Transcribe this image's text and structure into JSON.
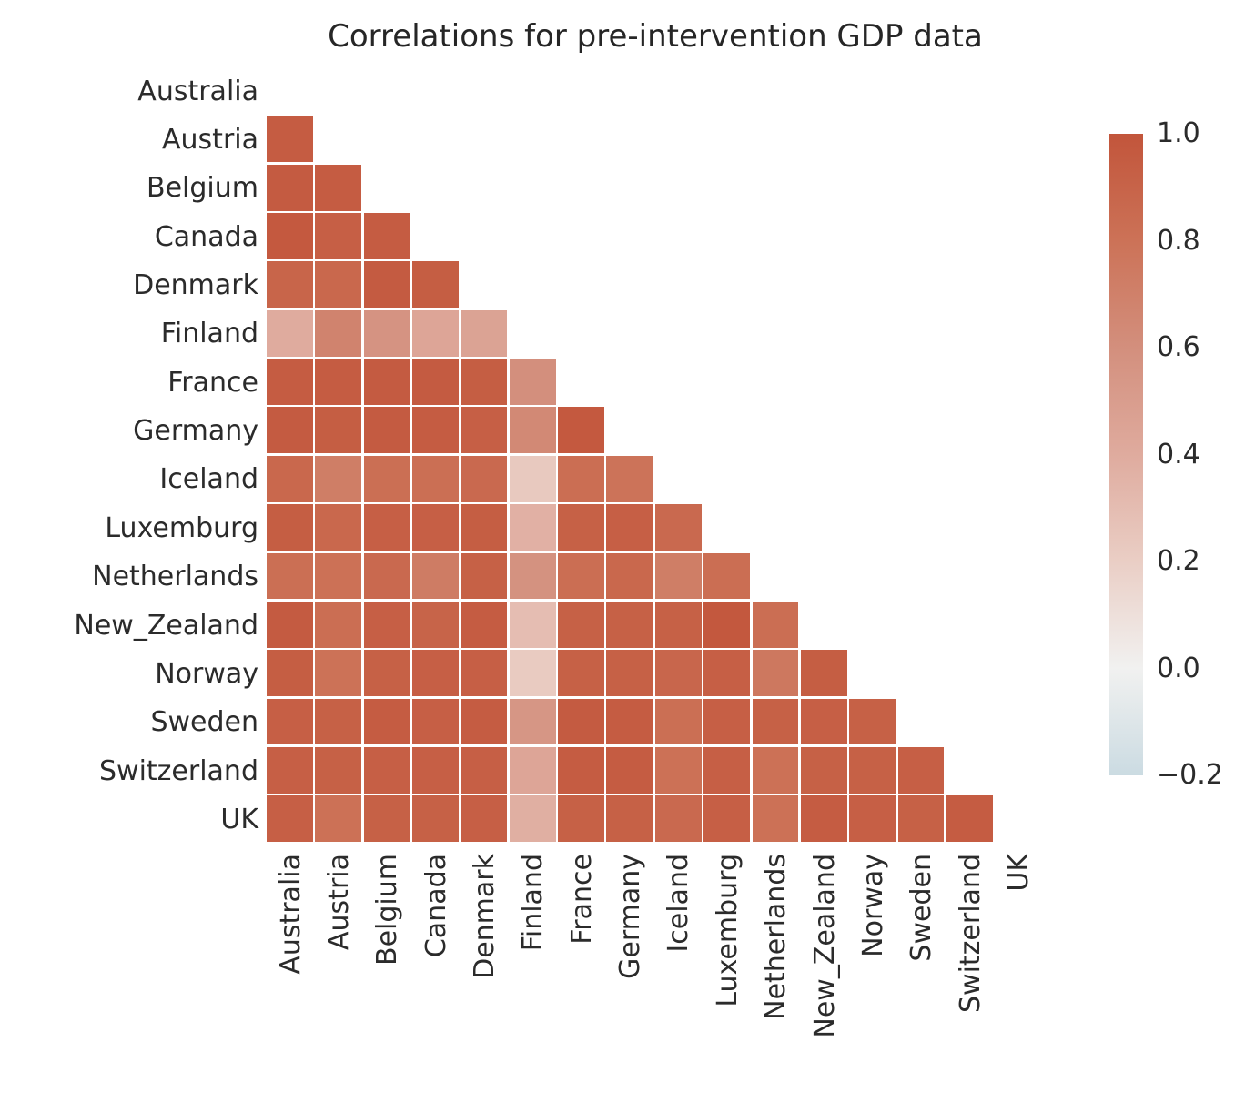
{
  "chart_data": {
    "type": "heatmap",
    "title": "Correlations for pre-intervention GDP data",
    "categories": [
      "Australia",
      "Austria",
      "Belgium",
      "Canada",
      "Denmark",
      "Finland",
      "France",
      "Germany",
      "Iceland",
      "Luxemburg",
      "Netherlands",
      "New_Zealand",
      "Norway",
      "Sweden",
      "Switzerland",
      "UK"
    ],
    "mask": "upper triangle and diagonal hidden",
    "matrix_lower_triangle": [
      [],
      [
        0.95
      ],
      [
        0.96,
        0.95
      ],
      [
        0.97,
        0.93,
        0.95
      ],
      [
        0.89,
        0.87,
        0.96,
        0.94
      ],
      [
        0.4,
        0.68,
        0.57,
        0.44,
        0.46
      ],
      [
        0.95,
        0.95,
        0.96,
        0.96,
        0.94,
        0.6
      ],
      [
        0.96,
        0.94,
        0.96,
        0.95,
        0.93,
        0.64,
        0.97
      ],
      [
        0.87,
        0.72,
        0.82,
        0.82,
        0.86,
        0.23,
        0.83,
        0.79
      ],
      [
        0.94,
        0.87,
        0.93,
        0.93,
        0.94,
        0.37,
        0.92,
        0.93,
        0.86
      ],
      [
        0.82,
        0.81,
        0.86,
        0.73,
        0.92,
        0.58,
        0.83,
        0.87,
        0.72,
        0.83
      ],
      [
        0.96,
        0.83,
        0.93,
        0.9,
        0.95,
        0.3,
        0.92,
        0.92,
        0.92,
        0.98,
        0.83
      ],
      [
        0.94,
        0.8,
        0.92,
        0.93,
        0.93,
        0.22,
        0.92,
        0.92,
        0.88,
        0.93,
        0.76,
        0.94
      ],
      [
        0.93,
        0.92,
        0.95,
        0.93,
        0.95,
        0.55,
        0.96,
        0.95,
        0.82,
        0.93,
        0.92,
        0.93,
        0.92
      ],
      [
        0.93,
        0.92,
        0.93,
        0.93,
        0.93,
        0.44,
        0.95,
        0.95,
        0.81,
        0.93,
        0.81,
        0.92,
        0.92,
        0.93
      ],
      [
        0.93,
        0.81,
        0.92,
        0.92,
        0.93,
        0.38,
        0.92,
        0.92,
        0.86,
        0.93,
        0.81,
        0.95,
        0.93,
        0.92,
        0.95
      ]
    ],
    "value_range": [
      -0.2,
      1.0
    ],
    "colorbar_ticks": [
      "1.0",
      "0.8",
      "0.6",
      "0.4",
      "0.2",
      "0.0",
      "−0.2"
    ],
    "colorbar_tick_values": [
      1.0,
      0.8,
      0.6,
      0.4,
      0.2,
      0.0,
      -0.2
    ],
    "colormap_stops": [
      {
        "v": -0.2,
        "c": "#cbdbe2"
      },
      {
        "v": 0.0,
        "c": "#f1f1f0"
      },
      {
        "v": 0.2,
        "c": "#eacec5"
      },
      {
        "v": 0.4,
        "c": "#dfab9e"
      },
      {
        "v": 0.6,
        "c": "#d38f7d"
      },
      {
        "v": 0.8,
        "c": "#cc7257"
      },
      {
        "v": 1.0,
        "c": "#c2553b"
      }
    ],
    "legend_position": "right",
    "grid_line_color": "#ffffff"
  },
  "colors": {
    "background": "#ffffff",
    "label_text": "#2b2b2b",
    "title_text": "#262626"
  }
}
